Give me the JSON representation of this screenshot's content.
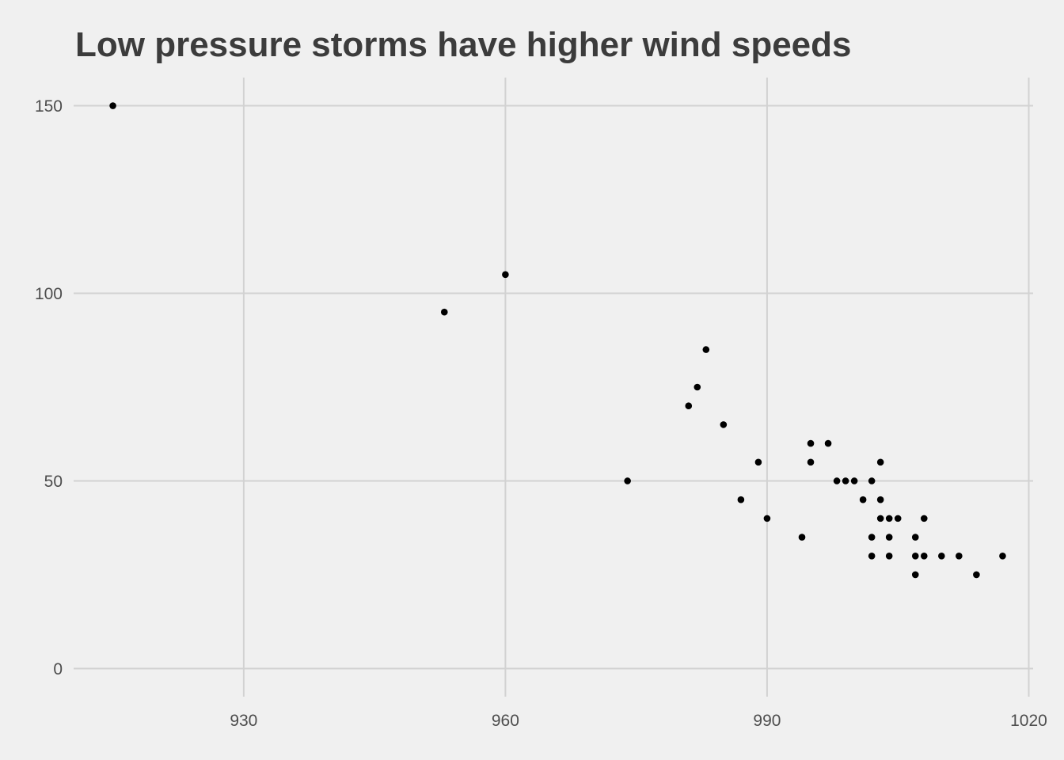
{
  "chart_data": {
    "type": "scatter",
    "title": "Low pressure storms have higher wind speeds",
    "xlabel": "",
    "ylabel": "",
    "xlim": [
      910.5,
      1020.5
    ],
    "ylim": [
      -7.5,
      157.5
    ],
    "x_ticks": [
      930,
      960,
      990,
      1020
    ],
    "x_tick_labels": [
      "930",
      "960",
      "990",
      "1020"
    ],
    "y_ticks": [
      0,
      50,
      100,
      150
    ],
    "y_tick_labels": [
      "0",
      "50",
      "100",
      "150"
    ],
    "grid": true,
    "legend": "none",
    "point_color": "#000000",
    "background_color": "#F0F0F0",
    "grid_color": "#D2D2D2",
    "title_color": "#3C3C3C",
    "points": [
      {
        "x": 915,
        "y": 150
      },
      {
        "x": 953,
        "y": 95
      },
      {
        "x": 960,
        "y": 105
      },
      {
        "x": 974,
        "y": 50
      },
      {
        "x": 981,
        "y": 70
      },
      {
        "x": 982,
        "y": 75
      },
      {
        "x": 983,
        "y": 85
      },
      {
        "x": 985,
        "y": 65
      },
      {
        "x": 987,
        "y": 45
      },
      {
        "x": 989,
        "y": 55
      },
      {
        "x": 990,
        "y": 40
      },
      {
        "x": 994,
        "y": 35
      },
      {
        "x": 995,
        "y": 60
      },
      {
        "x": 995,
        "y": 55
      },
      {
        "x": 997,
        "y": 60
      },
      {
        "x": 998,
        "y": 50
      },
      {
        "x": 999,
        "y": 50
      },
      {
        "x": 1000,
        "y": 50
      },
      {
        "x": 1001,
        "y": 45
      },
      {
        "x": 1002,
        "y": 50
      },
      {
        "x": 1002,
        "y": 35
      },
      {
        "x": 1002,
        "y": 30
      },
      {
        "x": 1003,
        "y": 55
      },
      {
        "x": 1003,
        "y": 45
      },
      {
        "x": 1003,
        "y": 40
      },
      {
        "x": 1004,
        "y": 40
      },
      {
        "x": 1004,
        "y": 35
      },
      {
        "x": 1004,
        "y": 30
      },
      {
        "x": 1005,
        "y": 40
      },
      {
        "x": 1007,
        "y": 35
      },
      {
        "x": 1007,
        "y": 30
      },
      {
        "x": 1007,
        "y": 25
      },
      {
        "x": 1008,
        "y": 40
      },
      {
        "x": 1008,
        "y": 30
      },
      {
        "x": 1010,
        "y": 30
      },
      {
        "x": 1012,
        "y": 30
      },
      {
        "x": 1014,
        "y": 25
      },
      {
        "x": 1017,
        "y": 30
      }
    ]
  }
}
